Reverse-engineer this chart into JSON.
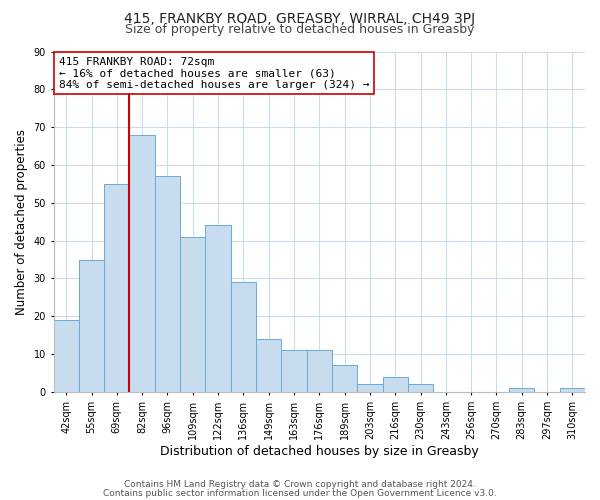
{
  "title1": "415, FRANKBY ROAD, GREASBY, WIRRAL, CH49 3PJ",
  "title2": "Size of property relative to detached houses in Greasby",
  "xlabel": "Distribution of detached houses by size in Greasby",
  "ylabel": "Number of detached properties",
  "categories": [
    "42sqm",
    "55sqm",
    "69sqm",
    "82sqm",
    "96sqm",
    "109sqm",
    "122sqm",
    "136sqm",
    "149sqm",
    "163sqm",
    "176sqm",
    "189sqm",
    "203sqm",
    "216sqm",
    "230sqm",
    "243sqm",
    "256sqm",
    "270sqm",
    "283sqm",
    "297sqm",
    "310sqm"
  ],
  "values": [
    19,
    35,
    55,
    68,
    57,
    41,
    44,
    29,
    14,
    11,
    11,
    7,
    2,
    4,
    2,
    0,
    0,
    0,
    1,
    0,
    1
  ],
  "bar_color": "#c8dcf0",
  "bar_edge_color": "#6aaad4",
  "vline_color": "#cc0000",
  "vline_at_bar": 2,
  "ylim": [
    0,
    90
  ],
  "yticks": [
    0,
    10,
    20,
    30,
    40,
    50,
    60,
    70,
    80,
    90
  ],
  "annotation_line1": "415 FRANKBY ROAD: 72sqm",
  "annotation_line2": "← 16% of detached houses are smaller (63)",
  "annotation_line3": "84% of semi-detached houses are larger (324) →",
  "annotation_box_color": "#ffffff",
  "annotation_box_edge": "#cc0000",
  "footer1": "Contains HM Land Registry data © Crown copyright and database right 2024.",
  "footer2": "Contains public sector information licensed under the Open Government Licence v3.0.",
  "bg_color": "#ffffff",
  "grid_color": "#ccdcec",
  "title1_fontsize": 10,
  "title2_fontsize": 9,
  "tick_fontsize": 7,
  "ylabel_fontsize": 8.5,
  "xlabel_fontsize": 9,
  "annot_fontsize": 8,
  "footer_fontsize": 6.5
}
